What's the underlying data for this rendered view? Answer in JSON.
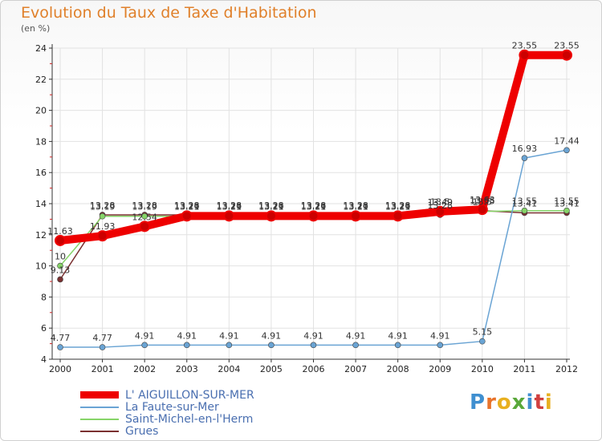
{
  "title": "Evolution du Taux de Taxe d'Habitation",
  "subtitle": "(en %)",
  "brand": {
    "text": "Proxiti",
    "letters": [
      "P",
      "r",
      "o",
      "x",
      "i",
      "t",
      "i"
    ],
    "colors": [
      "#3f8fd0",
      "#e8732a",
      "#e8b020",
      "#5aa83a",
      "#3f8fd0",
      "#d04040",
      "#e8b020"
    ]
  },
  "chart_data": {
    "type": "line",
    "title": "Evolution du Taux de Taxe d'Habitation",
    "ylabel": "(en %)",
    "xlabel": "",
    "ylim": [
      4,
      24
    ],
    "yticks": [
      4,
      6,
      8,
      10,
      12,
      14,
      16,
      18,
      20,
      22,
      24
    ],
    "categories": [
      "2000",
      "2001",
      "2002",
      "2003",
      "2004",
      "2005",
      "2006",
      "2007",
      "2008",
      "2009",
      "2010",
      "2011",
      "2012"
    ],
    "grid": true,
    "legend_position": "bottom-left",
    "series": [
      {
        "name": "Grues",
        "color": "#7a3030",
        "thick": false,
        "values": [
          9.13,
          13.28,
          13.28,
          13.28,
          13.28,
          13.28,
          13.28,
          13.28,
          13.28,
          13.28,
          13.55,
          13.41,
          13.41
        ],
        "labels": [
          "9.13",
          "13.28",
          "13.28",
          "13.28",
          "13.28",
          "13.28",
          "13.28",
          "13.28",
          "13.28",
          "13.28",
          "13.55",
          "13.41",
          "13.41"
        ]
      },
      {
        "name": "Saint-Michel-en-l'Herm",
        "color": "#86d468",
        "thick": false,
        "values": [
          10,
          13.19,
          13.19,
          13.19,
          13.19,
          13.19,
          13.19,
          13.19,
          13.19,
          13.5,
          13.5,
          13.55,
          13.55
        ],
        "labels": [
          "10",
          "13.19",
          "13.19",
          "13.19",
          "13.19",
          "13.19",
          "13.19",
          "13.19",
          "13.19",
          "13.5",
          "13.5",
          "13.55",
          "13.55"
        ]
      },
      {
        "name": "La Faute-sur-Mer",
        "color": "#6aa4d4",
        "thick": false,
        "values": [
          4.77,
          4.77,
          4.91,
          4.91,
          4.91,
          4.91,
          4.91,
          4.91,
          4.91,
          4.91,
          5.15,
          16.93,
          17.44
        ],
        "labels": [
          "4.77",
          "4.77",
          "4.91",
          "4.91",
          "4.91",
          "4.91",
          "4.91",
          "4.91",
          "4.91",
          "4.91",
          "5.15",
          "16.93",
          "17.44"
        ]
      },
      {
        "name": "L' AIGUILLON-SUR-MER",
        "color": "#ee0000",
        "thick": true,
        "values": [
          11.63,
          11.93,
          12.54,
          13.21,
          13.21,
          13.21,
          13.21,
          13.21,
          13.21,
          13.49,
          13.63,
          23.55,
          23.55
        ],
        "labels": [
          "11.63",
          "11.93",
          "12.54",
          "13.21",
          "13.21",
          "13.21",
          "13.21",
          "13.21",
          "13.21",
          "13.49",
          "13.63",
          "23.55",
          "23.55"
        ]
      }
    ]
  }
}
